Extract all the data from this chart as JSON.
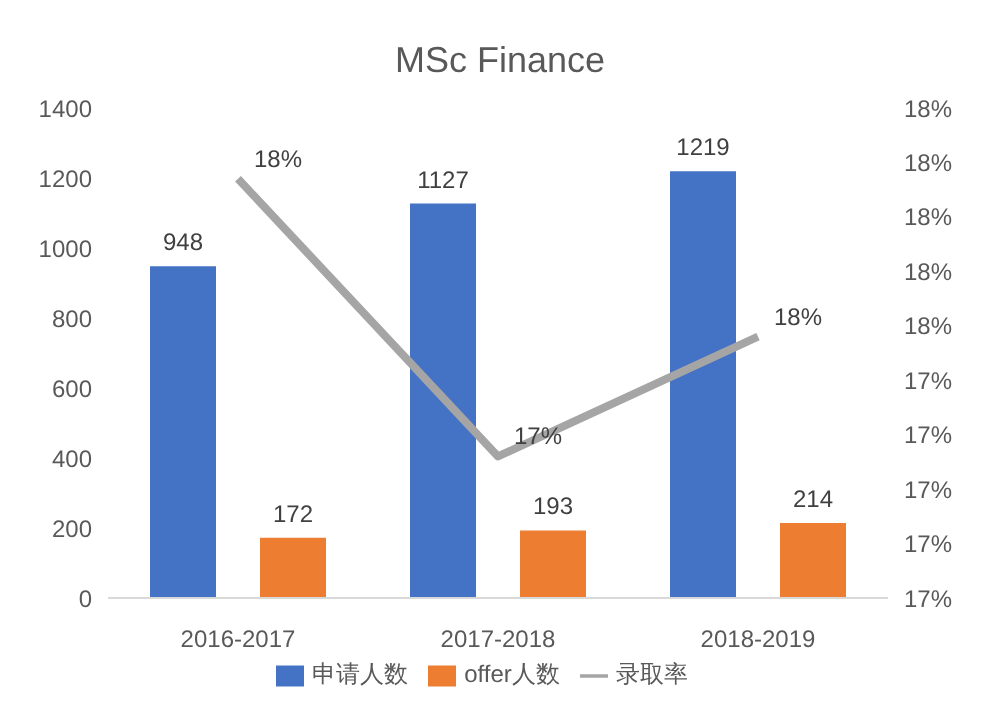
{
  "chart_data": {
    "type": "bar",
    "title": "MSc Finance",
    "categories": [
      "2016-2017",
      "2017-2018",
      "2018-2019"
    ],
    "series": [
      {
        "name": "申请人数",
        "color": "#4472c4",
        "values": [
          948,
          1127,
          1219
        ]
      },
      {
        "name": "offer人数",
        "color": "#ed7d31",
        "values": [
          172,
          193,
          214
        ]
      },
      {
        "name": "录取率",
        "type": "line",
        "axis": "y2",
        "color": "#a5a5a5",
        "values": [
          18.14,
          17.12,
          17.56
        ],
        "value_labels": [
          "18%",
          "17%",
          "18%"
        ]
      }
    ],
    "ylim": [
      0,
      1400
    ],
    "yticks": [
      0,
      200,
      400,
      600,
      800,
      1000,
      1200,
      1400
    ],
    "y2lim": [
      16.6,
      18.4
    ],
    "y2ticks": [
      {
        "value": 16.6,
        "label": "17%"
      },
      {
        "value": 16.8,
        "label": "17%"
      },
      {
        "value": 17.0,
        "label": "17%"
      },
      {
        "value": 17.2,
        "label": "17%"
      },
      {
        "value": 17.4,
        "label": "17%"
      },
      {
        "value": 17.6,
        "label": "18%"
      },
      {
        "value": 17.8,
        "label": "18%"
      },
      {
        "value": 18.0,
        "label": "18%"
      },
      {
        "value": 18.2,
        "label": "18%"
      },
      {
        "value": 18.4,
        "label": "18%"
      }
    ],
    "data_labels": true,
    "grid": false,
    "legend": "bottom",
    "marker": "none"
  }
}
